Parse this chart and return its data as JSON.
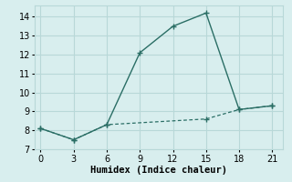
{
  "line1_x": [
    0,
    3,
    6,
    9,
    12,
    15,
    18,
    21
  ],
  "line1_y": [
    8.1,
    7.5,
    8.3,
    12.1,
    13.5,
    14.2,
    9.1,
    9.3
  ],
  "line2_x": [
    0,
    3,
    6,
    15,
    18,
    21
  ],
  "line2_y": [
    8.1,
    7.5,
    8.3,
    8.6,
    9.1,
    9.3
  ],
  "color": "#2a6e65",
  "background_color": "#d8eeee",
  "grid_color": "#b8d8d8",
  "xlabel": "Humidex (Indice chaleur)",
  "xlim": [
    -0.5,
    22
  ],
  "ylim": [
    7,
    14.6
  ],
  "xticks": [
    0,
    3,
    6,
    9,
    12,
    15,
    18,
    21
  ],
  "yticks": [
    7,
    8,
    9,
    10,
    11,
    12,
    13,
    14
  ],
  "xlabel_fontsize": 7.5,
  "tick_fontsize": 7
}
